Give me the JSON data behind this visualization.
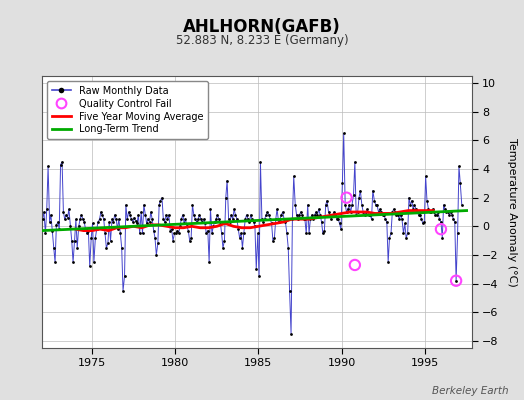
{
  "title": "AHLHORN(GAFB)",
  "subtitle": "52.883 N, 8.233 E (Germany)",
  "ylabel": "Temperature Anomaly (°C)",
  "watermark": "Berkeley Earth",
  "xlim": [
    1972.0,
    1997.8
  ],
  "ylim": [
    -8.5,
    10.5
  ],
  "yticks": [
    -8,
    -6,
    -4,
    -2,
    0,
    2,
    4,
    6,
    8,
    10
  ],
  "xticks": [
    1975,
    1980,
    1985,
    1990,
    1995
  ],
  "background_color": "#e0e0e0",
  "plot_bg_color": "#ffffff",
  "raw_color": "#4444cc",
  "dot_color": "#000000",
  "ma_color": "#ff0000",
  "trend_color": "#00aa00",
  "qc_color": "#ff44ff",
  "raw_times": [
    1972.04,
    1972.12,
    1972.21,
    1972.29,
    1972.37,
    1972.46,
    1972.54,
    1972.62,
    1972.71,
    1972.79,
    1972.87,
    1972.96,
    1973.04,
    1973.12,
    1973.21,
    1973.29,
    1973.37,
    1973.46,
    1973.54,
    1973.62,
    1973.71,
    1973.79,
    1973.87,
    1973.96,
    1974.04,
    1974.12,
    1974.21,
    1974.29,
    1974.37,
    1974.46,
    1974.54,
    1974.62,
    1974.71,
    1974.79,
    1974.87,
    1974.96,
    1975.04,
    1975.12,
    1975.21,
    1975.29,
    1975.37,
    1975.46,
    1975.54,
    1975.62,
    1975.71,
    1975.79,
    1975.87,
    1975.96,
    1976.04,
    1976.12,
    1976.21,
    1976.29,
    1976.37,
    1976.46,
    1976.54,
    1976.62,
    1976.71,
    1976.79,
    1976.87,
    1976.96,
    1977.04,
    1977.12,
    1977.21,
    1977.29,
    1977.37,
    1977.46,
    1977.54,
    1977.62,
    1977.71,
    1977.79,
    1977.87,
    1977.96,
    1978.04,
    1978.12,
    1978.21,
    1978.29,
    1978.37,
    1978.46,
    1978.54,
    1978.62,
    1978.71,
    1978.79,
    1978.87,
    1978.96,
    1979.04,
    1979.12,
    1979.21,
    1979.29,
    1979.37,
    1979.46,
    1979.54,
    1979.62,
    1979.71,
    1979.79,
    1979.87,
    1979.96,
    1980.04,
    1980.12,
    1980.21,
    1980.29,
    1980.37,
    1980.46,
    1980.54,
    1980.62,
    1980.71,
    1980.79,
    1980.87,
    1980.96,
    1981.04,
    1981.12,
    1981.21,
    1981.29,
    1981.37,
    1981.46,
    1981.54,
    1981.62,
    1981.71,
    1981.79,
    1981.87,
    1981.96,
    1982.04,
    1982.12,
    1982.21,
    1982.29,
    1982.37,
    1982.46,
    1982.54,
    1982.62,
    1982.71,
    1982.79,
    1982.87,
    1982.96,
    1983.04,
    1983.12,
    1983.21,
    1983.29,
    1983.37,
    1983.46,
    1983.54,
    1983.62,
    1983.71,
    1983.79,
    1983.87,
    1983.96,
    1984.04,
    1984.12,
    1984.21,
    1984.29,
    1984.37,
    1984.46,
    1984.54,
    1984.62,
    1984.71,
    1984.79,
    1984.87,
    1984.96,
    1985.04,
    1985.12,
    1985.21,
    1985.29,
    1985.37,
    1985.46,
    1985.54,
    1985.62,
    1985.71,
    1985.79,
    1985.87,
    1985.96,
    1986.04,
    1986.12,
    1986.21,
    1986.29,
    1986.37,
    1986.46,
    1986.54,
    1986.62,
    1986.71,
    1986.79,
    1986.87,
    1986.96,
    1987.04,
    1987.12,
    1987.21,
    1987.29,
    1987.37,
    1987.46,
    1987.54,
    1987.62,
    1987.71,
    1987.79,
    1987.87,
    1987.96,
    1988.04,
    1988.12,
    1988.21,
    1988.29,
    1988.37,
    1988.46,
    1988.54,
    1988.62,
    1988.71,
    1988.79,
    1988.87,
    1988.96,
    1989.04,
    1989.12,
    1989.21,
    1989.29,
    1989.37,
    1989.46,
    1989.54,
    1989.62,
    1989.71,
    1989.79,
    1989.87,
    1989.96,
    1990.04,
    1990.12,
    1990.21,
    1990.29,
    1990.37,
    1990.46,
    1990.54,
    1990.62,
    1990.71,
    1990.79,
    1990.87,
    1990.96,
    1991.04,
    1991.12,
    1991.21,
    1991.29,
    1991.37,
    1991.46,
    1991.54,
    1991.62,
    1991.71,
    1991.79,
    1991.87,
    1991.96,
    1992.04,
    1992.12,
    1992.21,
    1992.29,
    1992.37,
    1992.46,
    1992.54,
    1992.62,
    1992.71,
    1992.79,
    1992.87,
    1992.96,
    1993.04,
    1993.12,
    1993.21,
    1993.29,
    1993.37,
    1993.46,
    1993.54,
    1993.62,
    1993.71,
    1993.79,
    1993.87,
    1993.96,
    1994.04,
    1994.12,
    1994.21,
    1994.29,
    1994.37,
    1994.46,
    1994.54,
    1994.62,
    1994.71,
    1994.79,
    1994.87,
    1994.96,
    1995.04,
    1995.12,
    1995.21,
    1995.29,
    1995.37,
    1995.46,
    1995.54,
    1995.62,
    1995.71,
    1995.79,
    1995.87,
    1995.96,
    1996.04,
    1996.12,
    1996.21,
    1996.29,
    1996.37,
    1996.46,
    1996.54,
    1996.62,
    1996.71,
    1996.79,
    1996.87,
    1996.96,
    1997.04,
    1997.12,
    1997.21
  ],
  "raw_values": [
    0.5,
    1.0,
    -0.5,
    1.2,
    4.2,
    0.3,
    0.8,
    -0.3,
    -1.5,
    -2.5,
    0.1,
    0.3,
    -0.2,
    4.3,
    4.5,
    1.0,
    0.5,
    0.8,
    0.6,
    1.2,
    0.0,
    -1.0,
    -2.5,
    -1.0,
    0.5,
    -1.5,
    0.0,
    0.5,
    0.8,
    0.5,
    0.3,
    -0.2,
    -0.5,
    -0.3,
    -2.8,
    -0.8,
    0.2,
    -2.5,
    -0.8,
    -0.2,
    0.3,
    0.5,
    1.0,
    0.8,
    0.5,
    -0.5,
    -1.5,
    -1.2,
    0.3,
    -1.0,
    0.5,
    0.3,
    0.8,
    0.5,
    -0.2,
    0.5,
    -0.5,
    -1.5,
    -4.5,
    -3.5,
    1.5,
    0.5,
    1.0,
    0.8,
    0.5,
    0.3,
    0.6,
    0.4,
    0.2,
    0.8,
    -0.5,
    1.0,
    -0.5,
    1.5,
    0.8,
    0.2,
    0.5,
    0.3,
    1.0,
    0.5,
    -0.3,
    -0.8,
    -2.0,
    -1.2,
    1.5,
    1.8,
    2.0,
    0.5,
    0.3,
    0.8,
    0.5,
    0.8,
    -0.3,
    -0.2,
    -1.0,
    -0.5,
    -0.5,
    -0.3,
    -0.5,
    0.0,
    0.5,
    0.8,
    0.2,
    0.5,
    0.0,
    -0.3,
    -1.0,
    -0.8,
    1.5,
    0.8,
    0.5,
    0.3,
    0.5,
    0.8,
    0.5,
    0.3,
    0.5,
    0.2,
    -0.5,
    -0.3,
    -2.5,
    1.2,
    -0.5,
    0.0,
    0.3,
    0.5,
    0.8,
    0.5,
    0.3,
    -0.5,
    -1.5,
    -1.0,
    2.0,
    3.2,
    0.5,
    0.3,
    0.8,
    0.5,
    1.2,
    0.8,
    0.5,
    -0.2,
    -0.8,
    -0.5,
    -1.5,
    -0.5,
    0.5,
    0.8,
    0.5,
    0.3,
    0.8,
    0.5,
    0.3,
    0.0,
    -3.0,
    -0.5,
    -3.5,
    4.5,
    0.5,
    0.3,
    0.5,
    0.8,
    1.0,
    0.8,
    0.5,
    0.2,
    -1.0,
    -0.8,
    0.5,
    1.2,
    0.3,
    0.5,
    0.8,
    1.0,
    0.5,
    0.3,
    -0.5,
    -1.5,
    -4.5,
    -7.5,
    0.5,
    3.5,
    1.5,
    0.8,
    0.5,
    0.8,
    1.0,
    0.8,
    0.5,
    0.5,
    -0.5,
    1.5,
    -0.5,
    0.5,
    0.8,
    0.5,
    0.8,
    1.0,
    0.8,
    1.2,
    0.8,
    0.3,
    -0.5,
    -0.3,
    1.5,
    1.8,
    1.0,
    0.8,
    0.5,
    0.8,
    1.0,
    0.8,
    0.5,
    0.5,
    0.2,
    -0.2,
    3.0,
    6.5,
    1.5,
    1.0,
    1.2,
    1.5,
    1.0,
    1.5,
    2.2,
    4.5,
    0.8,
    1.0,
    2.0,
    2.5,
    1.5,
    1.0,
    0.8,
    1.0,
    1.2,
    0.8,
    0.8,
    0.5,
    2.5,
    1.8,
    1.5,
    1.5,
    1.0,
    1.2,
    1.0,
    0.8,
    0.8,
    0.5,
    0.3,
    -2.5,
    -0.8,
    -0.5,
    1.0,
    1.2,
    1.0,
    0.8,
    0.8,
    0.5,
    0.8,
    0.5,
    -0.5,
    0.2,
    -0.8,
    -0.5,
    2.0,
    1.5,
    1.8,
    1.2,
    1.5,
    1.2,
    1.0,
    0.8,
    0.8,
    0.5,
    0.2,
    0.3,
    3.5,
    1.8,
    1.2,
    1.0,
    1.0,
    1.2,
    1.0,
    0.8,
    0.8,
    1.0,
    0.5,
    0.3,
    -0.8,
    1.5,
    1.2,
    1.0,
    1.0,
    0.8,
    1.0,
    0.8,
    0.5,
    0.3,
    -3.8,
    -0.5,
    4.2,
    3.0,
    1.5
  ],
  "qc_fail_times": [
    1990.29,
    1990.79,
    1995.96,
    1996.87
  ],
  "qc_fail_values": [
    2.0,
    -2.7,
    -0.2,
    -3.8
  ],
  "ma_times": [
    1974.04,
    1974.5,
    1975.0,
    1975.5,
    1976.0,
    1976.5,
    1977.0,
    1977.5,
    1978.0,
    1978.5,
    1979.0,
    1979.5,
    1980.0,
    1980.5,
    1981.0,
    1981.5,
    1982.0,
    1982.5,
    1983.0,
    1983.5,
    1984.0,
    1984.5,
    1985.0,
    1985.5,
    1986.0,
    1986.5,
    1987.0,
    1987.5,
    1988.0,
    1988.5,
    1989.0,
    1989.5,
    1990.0,
    1990.5,
    1991.0,
    1991.5,
    1992.0,
    1992.5,
    1993.0,
    1993.5,
    1994.0,
    1994.5,
    1995.0,
    1995.5
  ],
  "ma_values": [
    -0.2,
    -0.3,
    -0.3,
    -0.2,
    -0.3,
    -0.1,
    -0.1,
    0.0,
    -0.1,
    0.1,
    0.1,
    0.0,
    -0.1,
    -0.1,
    0.0,
    -0.1,
    -0.1,
    0.0,
    0.2,
    0.0,
    -0.1,
    -0.1,
    0.0,
    0.1,
    0.2,
    0.3,
    0.5,
    0.5,
    0.5,
    0.6,
    0.7,
    0.8,
    0.9,
    1.0,
    1.0,
    1.0,
    0.9,
    0.9,
    0.9,
    1.0,
    1.1,
    1.1,
    1.1,
    1.1
  ],
  "trend_t": [
    1972.0,
    1997.5
  ],
  "trend_v": [
    -0.3,
    1.1
  ]
}
